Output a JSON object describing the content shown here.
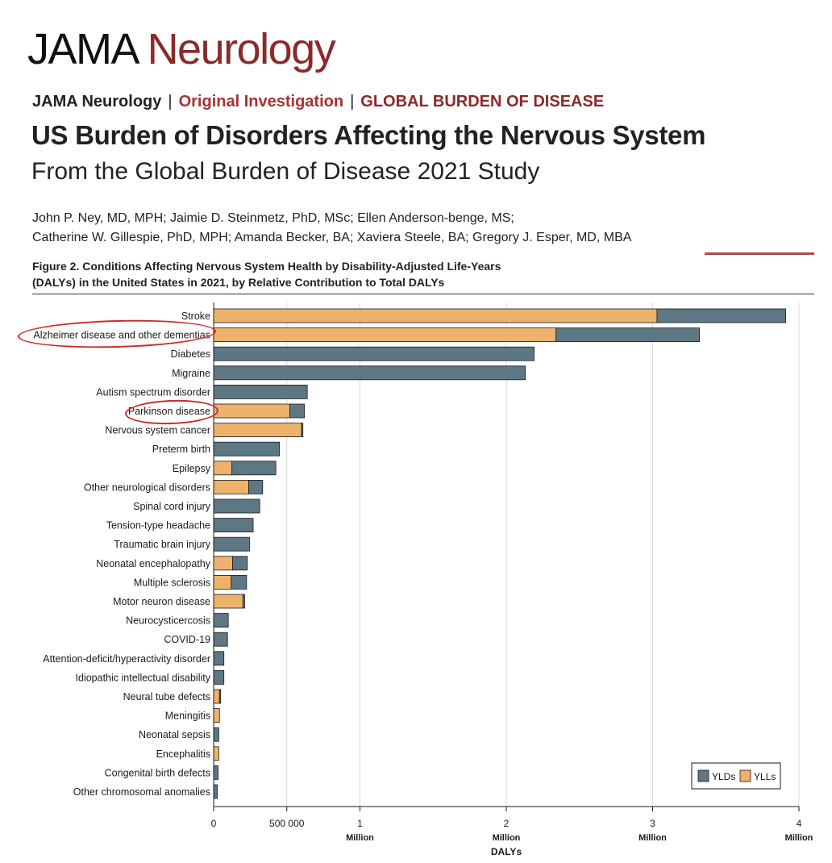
{
  "header": {
    "logo_part1": "JAMA",
    "logo_part2": "Neurology",
    "kicker_journal": "JAMA Neurology",
    "kicker_sep1": "|",
    "kicker_type": "Original Investigation",
    "kicker_sep2": "|",
    "kicker_section": "GLOBAL BURDEN OF DISEASE",
    "title": "US Burden of Disorders Affecting the Nervous System",
    "subtitle": "From the Global Burden of Disease 2021 Study",
    "authors_line1": "John P. Ney, MD, MPH; Jaimie D. Steinmetz, PhD, MSc; Ellen Anderson-benge, MS;",
    "authors_line2": "Catherine W. Gillespie, PhD, MPH; Amanda Becker, BA; Xaviera Steele, BA; Gregory J. Esper, MD, MBA",
    "figure_caption_line1": "Figure 2. Conditions Affecting Nervous System Health by Disability-Adjusted Life-Years",
    "figure_caption_line2": "(DALYs) in the United States in 2021, by Relative Contribution to Total DALYs"
  },
  "colors": {
    "ylds": "#5e7784",
    "ylls": "#edb26b",
    "grid": "#d9d9d9",
    "annotation": "#cc2a2a"
  },
  "chart_data": {
    "type": "bar",
    "orientation": "horizontal",
    "stacked": true,
    "title": "Figure 2. Conditions Affecting Nervous System Health by Disability-Adjusted Life-Years (DALYs) in the United States in 2021, by Relative Contribution to Total DALYs",
    "xlabel": "DALYs",
    "ylabel": "",
    "xlim": [
      0,
      4000000
    ],
    "grid": true,
    "legend_position": "bottom-right",
    "x_ticks": [
      {
        "value": 0,
        "line1": "0",
        "line2": ""
      },
      {
        "value": 500000,
        "line1": "500 000",
        "line2": ""
      },
      {
        "value": 1000000,
        "line1": "1",
        "line2": "Million"
      },
      {
        "value": 2000000,
        "line1": "2",
        "line2": "Million"
      },
      {
        "value": 3000000,
        "line1": "3",
        "line2": "Million"
      },
      {
        "value": 4000000,
        "line1": "4",
        "line2": "Million"
      }
    ],
    "categories": [
      "Stroke",
      "Alzheimer disease and other dementias",
      "Diabetes",
      "Migraine",
      "Autism spectrum disorder",
      "Parkinson disease",
      "Nervous system cancer",
      "Preterm birth",
      "Epilepsy",
      "Other neurological disorders",
      "Spinal cord injury",
      "Tension-type headache",
      "Traumatic brain injury",
      "Neonatal encephalopathy",
      "Multiple sclerosis",
      "Motor neuron disease",
      "Neurocysticercosis",
      "COVID-19",
      "Attention-deficit/hyperactivity disorder",
      "Idiopathic intellectual disability",
      "Neural tube defects",
      "Meningitis",
      "Neonatal sepsis",
      "Encephalitis",
      "Congenital birth defects",
      "Other chromosomal anomalies"
    ],
    "series": [
      {
        "name": "YLLs",
        "values": [
          3030000,
          2340000,
          0,
          0,
          0,
          520000,
          600000,
          0,
          125000,
          240000,
          0,
          0,
          0,
          130000,
          120000,
          200000,
          0,
          0,
          0,
          0,
          40000,
          40000,
          0,
          35000,
          0,
          0
        ]
      },
      {
        "name": "YLDs",
        "values": [
          880000,
          980000,
          2190000,
          2130000,
          640000,
          100000,
          10000,
          450000,
          300000,
          95000,
          315000,
          270000,
          245000,
          100000,
          105000,
          12000,
          100000,
          95000,
          70000,
          70000,
          8000,
          0,
          35000,
          0,
          30000,
          25000
        ]
      }
    ],
    "legend": [
      "YLDs",
      "YLLs"
    ],
    "annotations": [
      {
        "target": "Alzheimer disease and other dementias",
        "shape": "hand-drawn ellipse"
      },
      {
        "target": "Parkinson disease",
        "shape": "hand-drawn ellipse"
      }
    ]
  }
}
